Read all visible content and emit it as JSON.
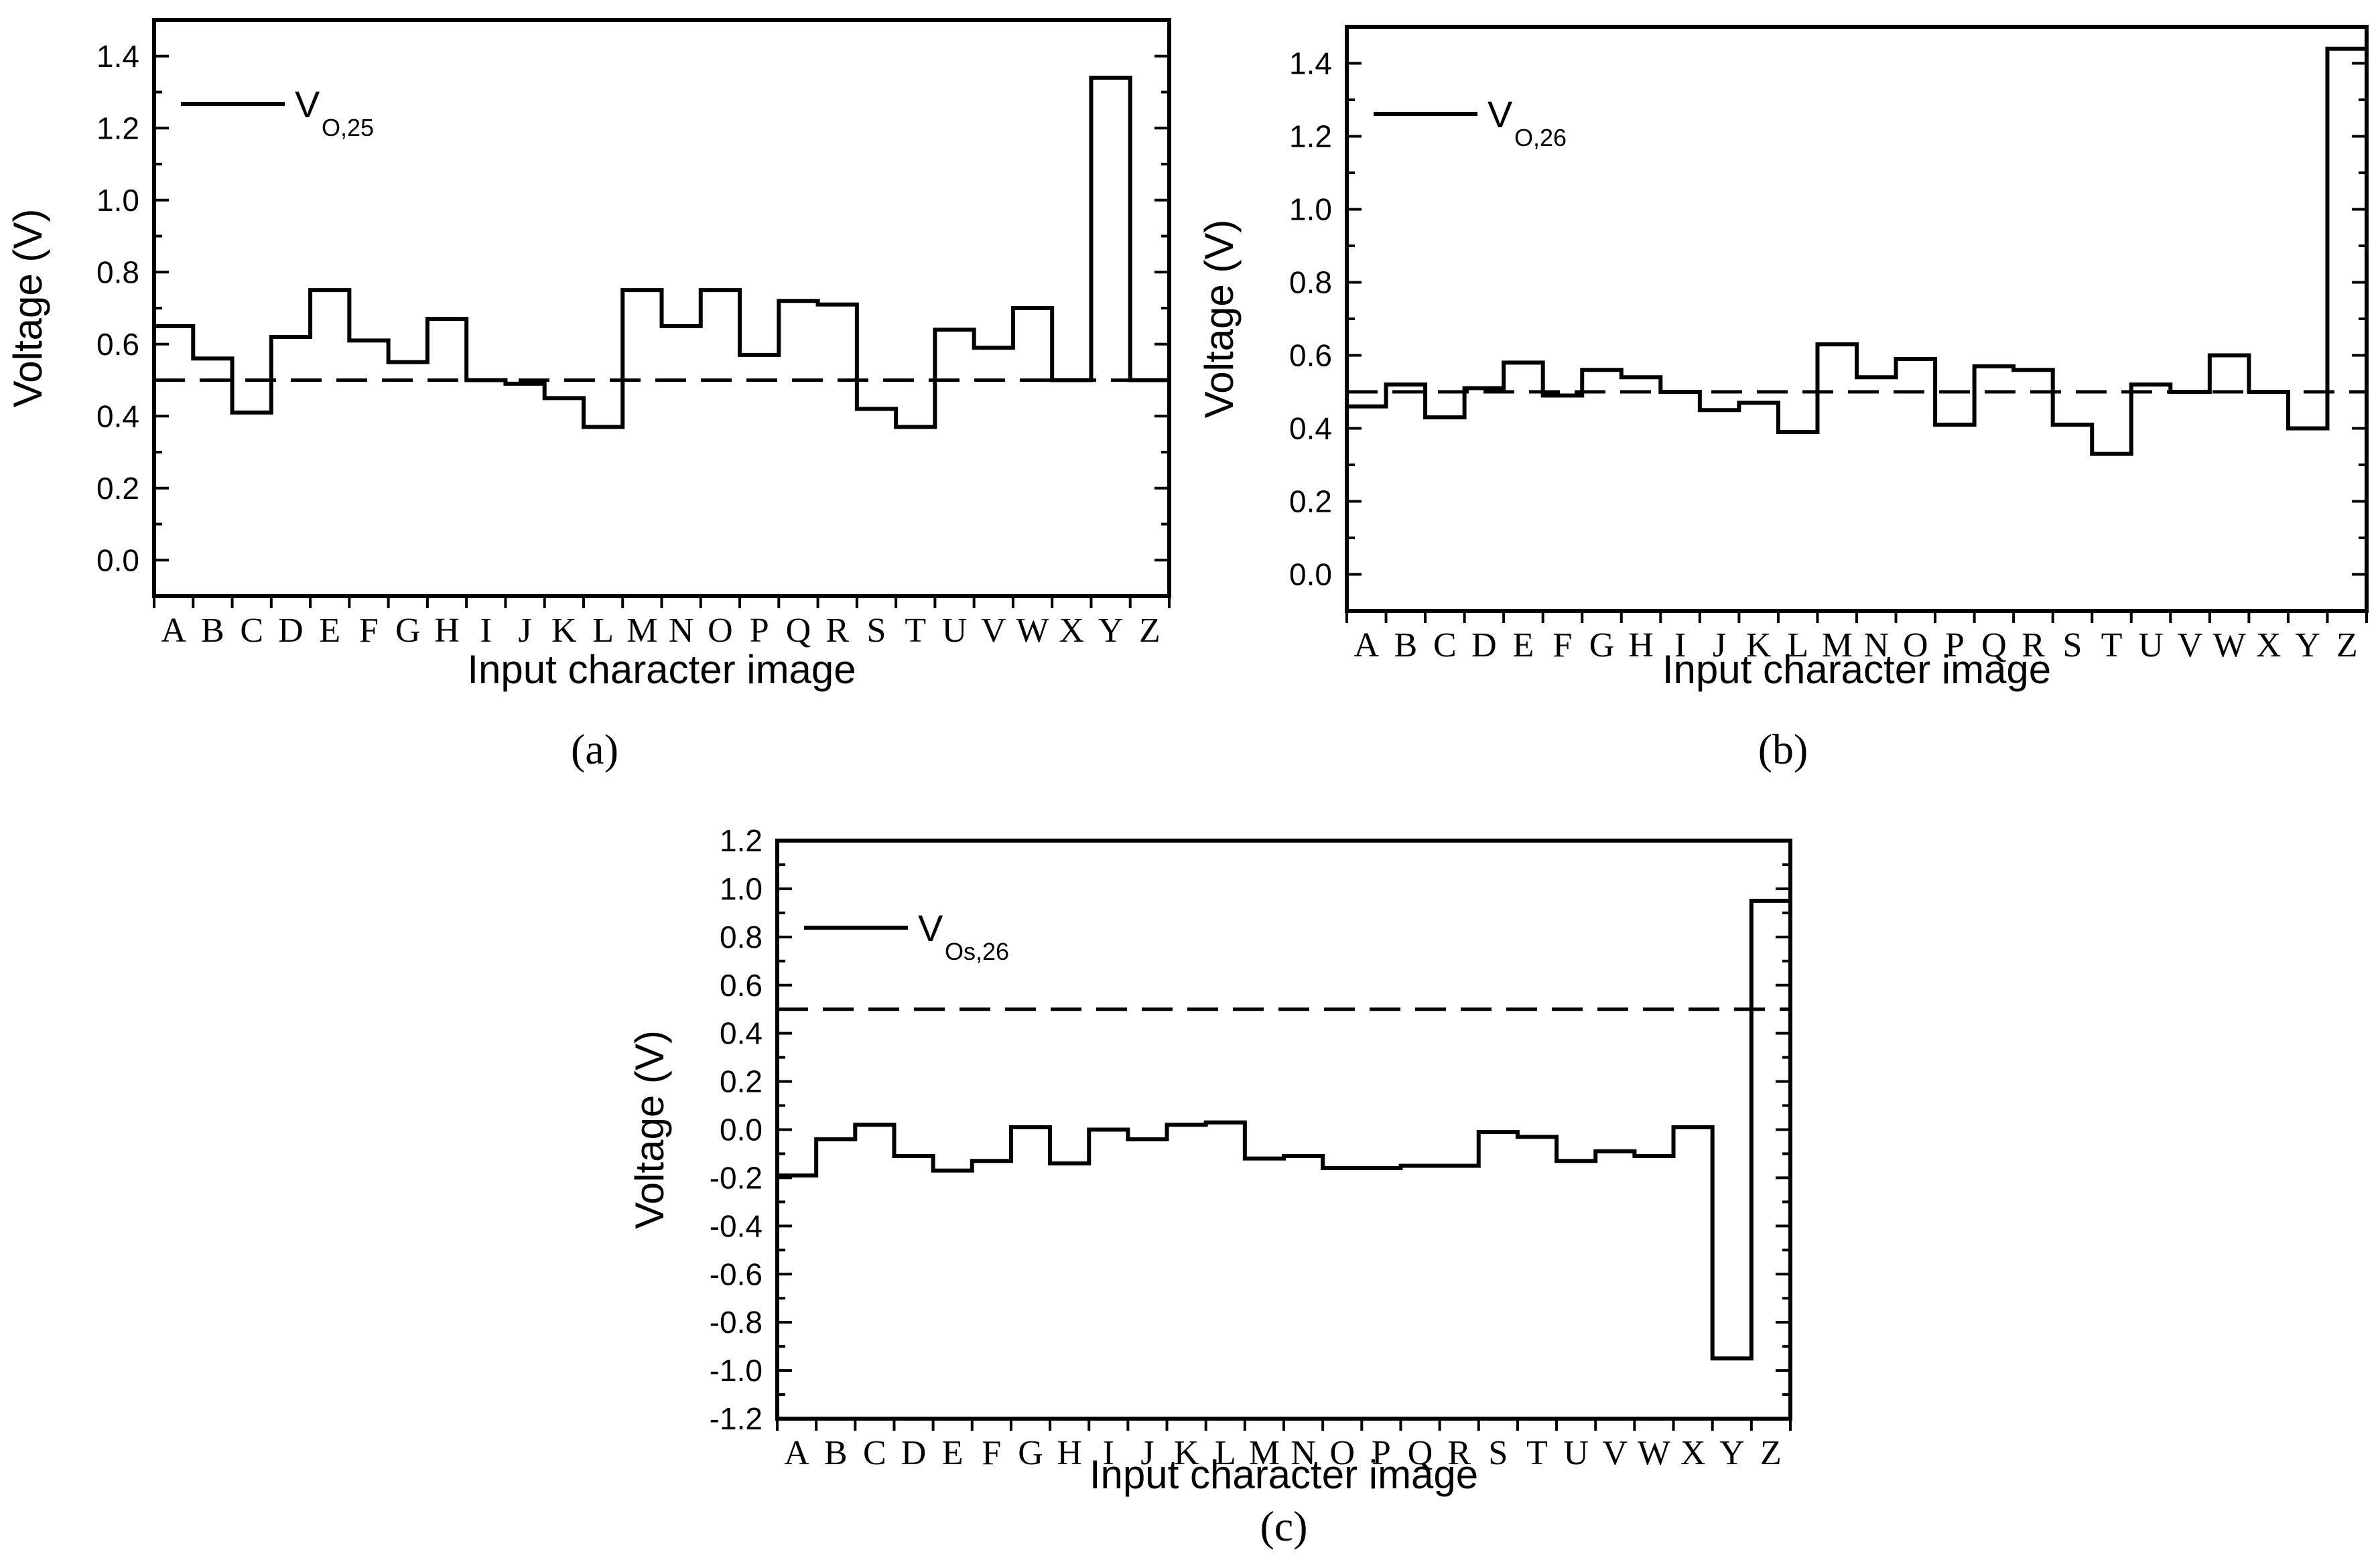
{
  "chart_data": [
    {
      "type": "line",
      "panel": "(a)",
      "ylabel": "Voltage (V)",
      "xlabel": "Input character image",
      "categories": [
        "A",
        "B",
        "C",
        "D",
        "E",
        "F",
        "G",
        "H",
        "I",
        "J",
        "K",
        "L",
        "M",
        "N",
        "O",
        "P",
        "Q",
        "R",
        "S",
        "T",
        "U",
        "V",
        "W",
        "X",
        "Y",
        "Z"
      ],
      "ylim": [
        -0.1,
        1.5
      ],
      "yticks": [
        "0.0",
        "0.2",
        "0.4",
        "0.6",
        "0.8",
        "1.0",
        "1.2",
        "1.4"
      ],
      "threshold": 0.5,
      "series": [
        {
          "name_main": "V",
          "name_sub": "O,25",
          "values": [
            0.65,
            0.56,
            0.41,
            0.62,
            0.75,
            0.61,
            0.55,
            0.67,
            0.5,
            0.49,
            0.45,
            0.37,
            0.75,
            0.65,
            0.75,
            0.57,
            0.72,
            0.71,
            0.42,
            0.37,
            0.64,
            0.59,
            0.7,
            0.5,
            1.34,
            0.5
          ]
        }
      ]
    },
    {
      "type": "line",
      "panel": "(b)",
      "ylabel": "Voltage (V)",
      "xlabel": "Input character image",
      "categories": [
        "A",
        "B",
        "C",
        "D",
        "E",
        "F",
        "G",
        "H",
        "I",
        "J",
        "K",
        "L",
        "M",
        "N",
        "O",
        "P",
        "Q",
        "R",
        "S",
        "T",
        "U",
        "V",
        "W",
        "X",
        "Y",
        "Z"
      ],
      "ylim": [
        -0.1,
        1.5
      ],
      "yticks": [
        "0.0",
        "0.2",
        "0.4",
        "0.6",
        "0.8",
        "1.0",
        "1.2",
        "1.4"
      ],
      "threshold": 0.5,
      "series": [
        {
          "name_main": "V",
          "name_sub": "O,26",
          "values": [
            0.46,
            0.52,
            0.43,
            0.51,
            0.58,
            0.49,
            0.56,
            0.54,
            0.5,
            0.45,
            0.47,
            0.39,
            0.63,
            0.54,
            0.59,
            0.41,
            0.57,
            0.56,
            0.41,
            0.33,
            0.52,
            0.5,
            0.6,
            0.5,
            0.4,
            1.44
          ]
        }
      ]
    },
    {
      "type": "line",
      "panel": "(c)",
      "ylabel": "Voltage (V)",
      "xlabel": "Input character image",
      "categories": [
        "A",
        "B",
        "C",
        "D",
        "E",
        "F",
        "G",
        "H",
        "I",
        "J",
        "K",
        "L",
        "M",
        "N",
        "O",
        "P",
        "Q",
        "R",
        "S",
        "T",
        "U",
        "V",
        "W",
        "X",
        "Y",
        "Z"
      ],
      "ylim": [
        -1.2,
        1.2
      ],
      "yticks": [
        "-1.2",
        "-1.0",
        "-0.8",
        "-0.6",
        "-0.4",
        "-0.2",
        "0.0",
        "0.2",
        "0.4",
        "0.6",
        "0.8",
        "1.0",
        "1.2"
      ],
      "threshold": 0.5,
      "series": [
        {
          "name_main": "V",
          "name_sub": "Os,26",
          "values": [
            -0.19,
            -0.04,
            0.02,
            -0.11,
            -0.17,
            -0.13,
            0.01,
            -0.14,
            0.0,
            -0.04,
            0.02,
            0.03,
            -0.12,
            -0.11,
            -0.16,
            -0.16,
            -0.15,
            -0.15,
            -0.01,
            -0.03,
            -0.13,
            -0.09,
            -0.11,
            0.01,
            -0.95,
            0.95
          ]
        }
      ]
    }
  ]
}
